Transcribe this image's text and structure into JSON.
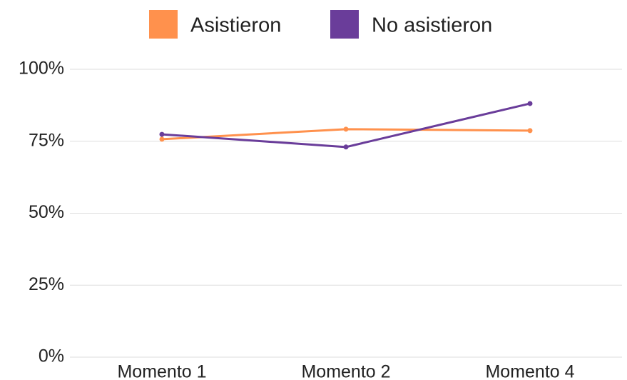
{
  "chart_data": {
    "type": "line",
    "categories": [
      "Momento 1",
      "Momento 2",
      "Momento 4"
    ],
    "series": [
      {
        "name": "Asistieron",
        "color": "#ff914d",
        "values": [
          75.7,
          79.2,
          78.7
        ]
      },
      {
        "name": "No asistieron",
        "color": "#6a3d9a",
        "values": [
          77.4,
          73.0,
          88.1
        ]
      }
    ],
    "ylim": [
      0,
      100
    ],
    "yticks": [
      {
        "value": 0,
        "label": "0%"
      },
      {
        "value": 25,
        "label": "25%"
      },
      {
        "value": 50,
        "label": "50%"
      },
      {
        "value": 75,
        "label": "75%"
      },
      {
        "value": 100,
        "label": "100%"
      }
    ],
    "grid": true,
    "legend": "top"
  }
}
